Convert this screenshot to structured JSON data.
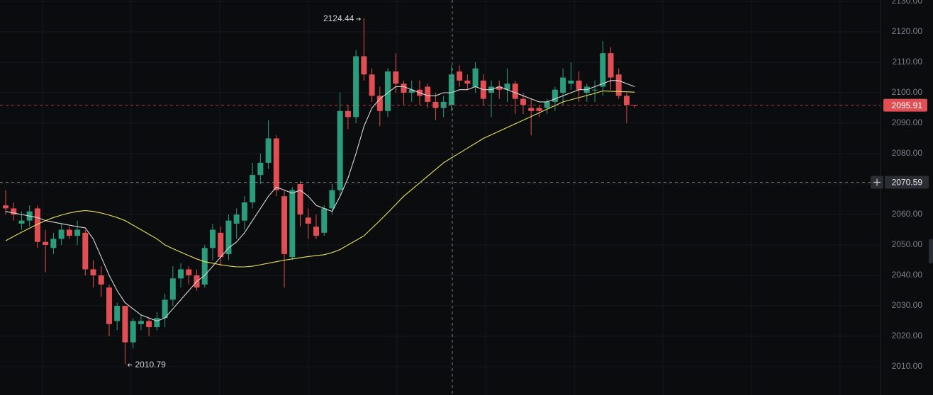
{
  "chart_data": {
    "type": "candlestick",
    "up_color": "#2b9c7c",
    "down_color": "#e04f54",
    "open": [
      2063,
      2062,
      2057,
      2058,
      2062,
      2051,
      2049,
      2052,
      2055,
      2053,
      2054,
      2042,
      2040,
      2036,
      2025,
      2030,
      2018,
      2024,
      2025,
      2023,
      2026,
      2032,
      2039,
      2042,
      2040,
      2037,
      2049,
      2054,
      2047,
      2057,
      2058,
      2064,
      2073,
      2077,
      2085,
      2066,
      2046,
      2070,
      2059,
      2056,
      2054,
      2062,
      2068,
      2094,
      2092,
      2112,
      2106,
      2099,
      2094,
      2107,
      2103,
      2100,
      2101,
      2102,
      2097,
      2095,
      2096,
      2107,
      2104,
      2102,
      2104,
      2100,
      2102,
      2101,
      2103,
      2098,
      2095,
      2095,
      2095,
      2097,
      2100,
      2103,
      2104,
      2100,
      2101,
      2102,
      2113,
      2106,
      2099,
      2096
    ],
    "high": [
      2068,
      2064,
      2061,
      2063,
      2063,
      2055,
      2054,
      2057,
      2056,
      2058,
      2055,
      2045,
      2043,
      2037,
      2031,
      2030,
      2026,
      2027,
      2026,
      2028,
      2034,
      2043,
      2044,
      2043,
      2042,
      2050,
      2057,
      2056,
      2060,
      2062,
      2066,
      2077,
      2080,
      2091,
      2086,
      2068,
      2069,
      2071,
      2062,
      2060,
      2063,
      2070,
      2100,
      2096,
      2114,
      2124.44,
      2108,
      2102,
      2108,
      2113,
      2104,
      2104,
      2104,
      2103,
      2100,
      2099,
      2109,
      2109,
      2106,
      2110,
      2106,
      2104,
      2104,
      2108,
      2104,
      2100,
      2098,
      2096,
      2098,
      2102,
      2108,
      2110,
      2107,
      2103,
      2104,
      2117,
      2115,
      2108,
      2100,
      2096
    ],
    "low": [
      2060,
      2058,
      2055,
      2056,
      2049,
      2041,
      2047,
      2050,
      2052,
      2050,
      2040,
      2036,
      2033,
      2020,
      2022,
      2010.79,
      2016,
      2022,
      2020,
      2022,
      2023,
      2030,
      2036,
      2037,
      2035,
      2036,
      2045,
      2043,
      2045,
      2052,
      2055,
      2062,
      2070,
      2075,
      2066,
      2036,
      2045,
      2056,
      2052,
      2052,
      2053,
      2060,
      2066,
      2088,
      2090,
      2104,
      2097,
      2089,
      2092,
      2100,
      2096,
      2097,
      2096,
      2095,
      2091,
      2092,
      2094,
      2102,
      2101,
      2100,
      2096,
      2092,
      2098,
      2097,
      2093,
      2093,
      2086,
      2092,
      2093,
      2094,
      2096,
      2101,
      2097,
      2097,
      2097,
      2099,
      2101,
      2098,
      2090,
      2095
    ],
    "close": [
      2062,
      2060,
      2058,
      2061,
      2051,
      2050,
      2052,
      2055,
      2053,
      2055,
      2042,
      2040,
      2037,
      2024,
      2030,
      2018,
      2025,
      2025,
      2023,
      2026,
      2032,
      2039,
      2042,
      2040,
      2036,
      2049,
      2055,
      2046,
      2058,
      2060,
      2064,
      2073,
      2077,
      2085,
      2068,
      2047,
      2068,
      2060,
      2057,
      2053,
      2062,
      2068,
      2094,
      2092,
      2112,
      2106,
      2099,
      2094,
      2107,
      2103,
      2100,
      2101,
      2099,
      2097,
      2095,
      2097,
      2106,
      2104,
      2103,
      2108,
      2098,
      2102,
      2101,
      2103,
      2098,
      2096,
      2094,
      2094,
      2097,
      2101,
      2105,
      2104,
      2101,
      2102,
      2101,
      2113,
      2105,
      2099,
      2096,
      2095.91
    ],
    "moving_averages": [
      {
        "color": "#d8d8d8",
        "values": [
          2061,
          2060.5,
          2060,
          2059.5,
          2059,
          2058,
          2057.5,
          2057,
          2056.5,
          2056,
          2055.6,
          2052,
          2046,
          2040,
          2035,
          2031,
          2029,
          2027,
          2026,
          2025,
          2026,
          2029,
          2032,
          2035,
          2038,
          2040,
          2043,
          2046,
          2049,
          2051,
          2054,
          2058,
          2062,
          2066,
          2069,
          2068,
          2067,
          2068,
          2066,
          2063,
          2062,
          2061,
          2066,
          2072,
          2080,
          2089,
          2095,
          2098,
          2100,
          2102,
          2102,
          2101,
          2100,
          2099,
          2099,
          2100,
          2100,
          2101,
          2101,
          2102,
          2101,
          2101,
          2102,
          2101,
          2100,
          2099,
          2098,
          2097,
          2097,
          2098,
          2099,
          2100,
          2101,
          2101,
          2102,
          2103,
          2104,
          2104,
          2103,
          2102
        ]
      },
      {
        "color": "#e8e05a",
        "values": [
          2051.4,
          2052.8,
          2054.2,
          2055.5,
          2056.8,
          2058,
          2059,
          2059.8,
          2060.5,
          2061,
          2061.3,
          2061,
          2060.5,
          2059.8,
          2059,
          2058,
          2056.5,
          2055,
          2053.5,
          2052,
          2050,
          2048.8,
          2047.6,
          2046.5,
          2045.4,
          2044.5,
          2044,
          2043.5,
          2043.1,
          2042.8,
          2042.8,
          2043,
          2043.5,
          2044,
          2044.5,
          2045,
          2045.4,
          2045.8,
          2046.2,
          2046.5,
          2046.8,
          2047.5,
          2048.5,
          2050,
          2051.5,
          2053,
          2055.5,
          2058,
          2060.6,
          2063.3,
          2066,
          2068.2,
          2070.4,
          2072.6,
          2074.8,
          2077,
          2078.6,
          2080.2,
          2081.8,
          2083.4,
          2085,
          2086.2,
          2087.4,
          2088.6,
          2089.8,
          2091,
          2092.2,
          2093.4,
          2094.6,
          2095.8,
          2097,
          2097.7,
          2098.4,
          2099.1,
          2099.8,
          2100.6,
          2100.5,
          2100.4,
          2100.3,
          2100.2
        ]
      }
    ],
    "crosshair_price": 2070.59,
    "ylim": [
      2000.7,
      2130.47
    ],
    "yticks": [
      {
        "value": 2130,
        "label": "2130.00"
      },
      {
        "value": 2120,
        "label": "2120.00"
      },
      {
        "value": 2110,
        "label": "2110.00"
      },
      {
        "value": 2100,
        "label": "2100.00"
      },
      {
        "value": 2090,
        "label": "2090.00"
      },
      {
        "value": 2080,
        "label": "2080.00"
      },
      {
        "value": 2070,
        "label": "2070.00"
      },
      {
        "value": 2060,
        "label": "2060.00"
      },
      {
        "value": 2050,
        "label": "2050.00"
      },
      {
        "value": 2040,
        "label": "2040.00"
      },
      {
        "value": 2030,
        "label": "2030.00"
      },
      {
        "value": 2020,
        "label": "2020.00"
      },
      {
        "value": 2010,
        "label": "2010.00"
      }
    ],
    "grid": true
  }
}
